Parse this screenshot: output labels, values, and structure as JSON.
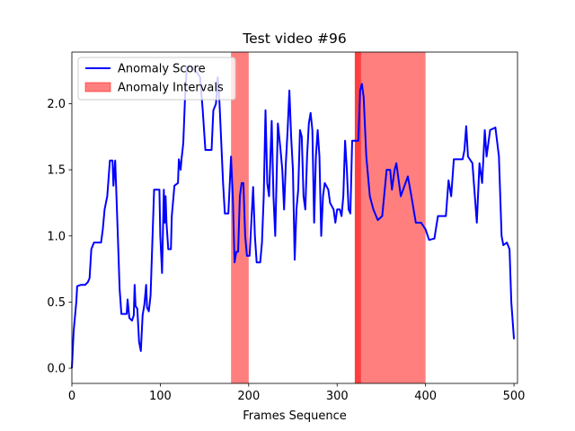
{
  "chart_data": {
    "type": "line",
    "title": "Test video #96",
    "xlabel": "Frames Sequence",
    "legend": "upper left",
    "series": [
      {
        "name": "Anomaly Score",
        "color": "#0000ff",
        "x": [
          0,
          2,
          5,
          6,
          10,
          15,
          18,
          20,
          22,
          25,
          33,
          35,
          37,
          40,
          43,
          46,
          47,
          49,
          50,
          52,
          54,
          56,
          62,
          63,
          65,
          68,
          70,
          71,
          72,
          74,
          76,
          78,
          80,
          82,
          84,
          85,
          87,
          89,
          91,
          93,
          99,
          100,
          102,
          104,
          105,
          106,
          107,
          109,
          112,
          113,
          116,
          120,
          121,
          123,
          124,
          126,
          128,
          130,
          135,
          140,
          145,
          148,
          151,
          158,
          160,
          163,
          165,
          167,
          169,
          171,
          173,
          177,
          180,
          182,
          184,
          186,
          188,
          190,
          192,
          194,
          196,
          198,
          201,
          205,
          207,
          209,
          213,
          215,
          217,
          219,
          221,
          223,
          226,
          228,
          230,
          233,
          236,
          238,
          240,
          242,
          244,
          246,
          248,
          250,
          252,
          254,
          256,
          258,
          260,
          262,
          264,
          266,
          268,
          270,
          272,
          274,
          276,
          278,
          280,
          282,
          284,
          286,
          290,
          292,
          296,
          298,
          300,
          303,
          305,
          307,
          309,
          311,
          313,
          315,
          317,
          324,
          326,
          328,
          330,
          333,
          337,
          341,
          346,
          351,
          356,
          360,
          362,
          365,
          367,
          372,
          380,
          384,
          389,
          395,
          400,
          404,
          410,
          414,
          423,
          426,
          429,
          432,
          442,
          444,
          446,
          448,
          453,
          458,
          461,
          464,
          467,
          469,
          473,
          479,
          483,
          486,
          488,
          492,
          495,
          497,
          500
        ],
        "values": [
          0.0,
          0.28,
          0.5,
          0.62,
          0.63,
          0.63,
          0.65,
          0.68,
          0.9,
          0.95,
          0.95,
          1.05,
          1.2,
          1.3,
          1.57,
          1.57,
          1.38,
          1.57,
          1.38,
          1.0,
          0.6,
          0.41,
          0.41,
          0.52,
          0.38,
          0.36,
          0.4,
          0.63,
          0.47,
          0.45,
          0.2,
          0.13,
          0.4,
          0.48,
          0.63,
          0.46,
          0.43,
          0.55,
          0.95,
          1.35,
          1.35,
          1.0,
          0.72,
          1.35,
          1.1,
          1.3,
          1.1,
          0.9,
          0.9,
          1.15,
          1.38,
          1.4,
          1.58,
          1.5,
          1.58,
          1.7,
          2.05,
          2.28,
          2.28,
          2.25,
          2.2,
          1.95,
          1.65,
          1.65,
          1.95,
          2.0,
          2.2,
          2.0,
          1.7,
          1.4,
          1.17,
          1.17,
          1.6,
          1.3,
          0.8,
          0.88,
          0.88,
          1.3,
          1.4,
          1.4,
          1.0,
          0.85,
          0.85,
          1.37,
          1.0,
          0.8,
          0.8,
          0.95,
          1.3,
          1.95,
          1.4,
          1.3,
          1.87,
          1.3,
          1.0,
          1.85,
          1.65,
          1.5,
          1.2,
          1.55,
          1.8,
          2.1,
          1.75,
          1.5,
          0.82,
          1.2,
          1.35,
          1.8,
          1.75,
          1.3,
          1.2,
          1.6,
          1.85,
          1.93,
          1.8,
          1.1,
          1.6,
          1.8,
          1.6,
          1.0,
          1.3,
          1.4,
          1.35,
          1.25,
          1.2,
          1.1,
          1.2,
          1.2,
          1.15,
          1.3,
          1.72,
          1.5,
          1.2,
          1.17,
          1.72,
          1.72,
          2.1,
          2.15,
          2.05,
          1.6,
          1.3,
          1.2,
          1.12,
          1.15,
          1.5,
          1.5,
          1.35,
          1.5,
          1.55,
          1.3,
          1.45,
          1.3,
          1.1,
          1.1,
          1.05,
          0.97,
          0.98,
          1.15,
          1.15,
          1.42,
          1.3,
          1.58,
          1.58,
          1.65,
          1.83,
          1.6,
          1.55,
          1.1,
          1.55,
          1.4,
          1.8,
          1.6,
          1.8,
          1.82,
          1.6,
          1.0,
          0.93,
          0.95,
          0.9,
          0.5,
          0.22
        ]
      }
    ],
    "intervals": {
      "name": "Anomaly Intervals",
      "color": "#ff0000",
      "alpha": 0.5,
      "spans": [
        [
          180,
          200
        ],
        [
          320,
          400
        ],
        [
          320,
          327
        ]
      ]
    },
    "xlim": [
      0,
      504
    ],
    "ylim": [
      -0.115,
      2.39
    ],
    "xticks": [
      0,
      100,
      200,
      300,
      400,
      500
    ],
    "yticks": [
      {
        "value": 0,
        "label": "0.0"
      },
      {
        "value": 0.5,
        "label": "0.5"
      },
      {
        "value": 1,
        "label": "1.0"
      },
      {
        "value": 1.5,
        "label": "1.5"
      },
      {
        "value": 2,
        "label": "2.0"
      }
    ]
  }
}
